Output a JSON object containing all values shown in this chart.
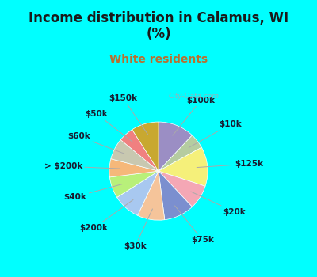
{
  "title": "Income distribution in Calamus, WI\n(%)",
  "subtitle": "White residents",
  "title_color": "#1a1a1a",
  "subtitle_color": "#b87030",
  "bg_cyan": "#00ffff",
  "watermark": "City-Data.com",
  "labels": [
    "$100k",
    "$10k",
    "$125k",
    "$20k",
    "$75k",
    "$30k",
    "$200k",
    "$40k",
    "> $200k",
    "$60k",
    "$50k",
    "$150k"
  ],
  "values": [
    12,
    5,
    13,
    8,
    10,
    9,
    9,
    7,
    6,
    7,
    5,
    9
  ],
  "colors": [
    "#9b8ec4",
    "#b5cca0",
    "#f5f07a",
    "#f4a7b5",
    "#7b8fcf",
    "#f5c49a",
    "#a8c8f0",
    "#b8f07a",
    "#f5b87a",
    "#c8c8b0",
    "#f08080",
    "#c8a830"
  ],
  "label_fontsize": 7.5,
  "title_fontsize": 12,
  "subtitle_fontsize": 10
}
